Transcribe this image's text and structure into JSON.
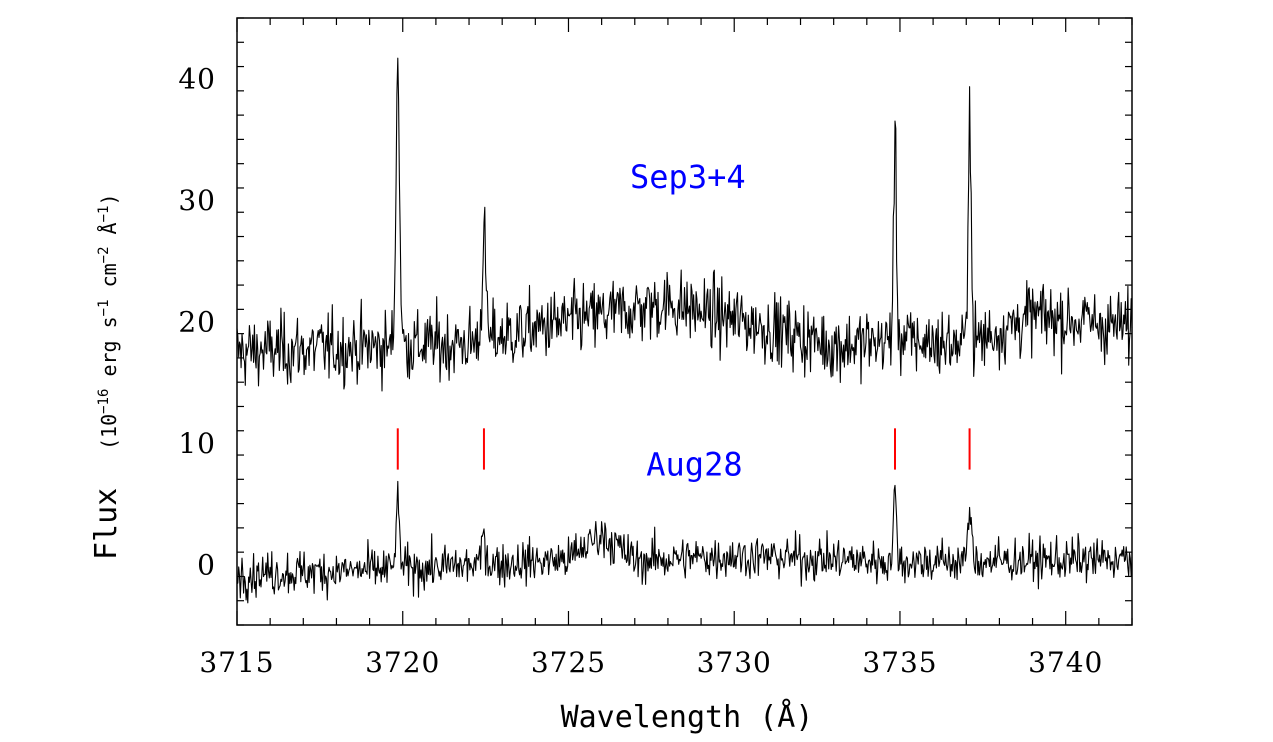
{
  "chart_data": {
    "type": "line",
    "title": "",
    "xlabel": "Wavelength (Å)",
    "ylabel_main": "Flux",
    "ylabel_unit": "(10",
    "ylabel_unit_parts": [
      "(10",
      "−16",
      " erg s",
      "−1",
      " cm",
      "−2",
      " Å",
      "−1",
      ")"
    ],
    "xlim": [
      3715,
      3742
    ],
    "ylim": [
      -5,
      45
    ],
    "x_ticks": [
      3715,
      3720,
      3725,
      3730,
      3735,
      3740
    ],
    "y_ticks": [
      0,
      10,
      20,
      30,
      40
    ],
    "grid": false,
    "line_color": "#000000",
    "marker_color": "#ff0000",
    "label_color": "#0000ff",
    "marker_lines": {
      "x": [
        3719.85,
        3722.45,
        3734.85,
        3737.1
      ],
      "y_range": [
        7.8,
        11.2
      ]
    },
    "series": [
      {
        "name": "Sep3+4",
        "label_position": [
          3728.6,
          31
        ],
        "baseline": [
          [
            3715,
            17.5
          ],
          [
            3722,
            18.2
          ],
          [
            3725,
            20.0
          ],
          [
            3728,
            21.5
          ],
          [
            3731,
            19.5
          ],
          [
            3733,
            18.0
          ],
          [
            3735,
            18.5
          ],
          [
            3737,
            18.0
          ],
          [
            3739,
            20.5
          ],
          [
            3742,
            19.5
          ]
        ],
        "noise_amplitude": 2.6,
        "lines": [
          {
            "center": 3719.85,
            "peak": 41.0,
            "width": 0.055
          },
          {
            "center": 3722.45,
            "peak": 27.5,
            "width": 0.055
          },
          {
            "center": 3734.85,
            "peak": 34.5,
            "width": 0.045
          },
          {
            "center": 3737.1,
            "peak": 38.0,
            "width": 0.045
          }
        ]
      },
      {
        "name": "Aug28",
        "label_position": [
          3728.8,
          7.3
        ],
        "baseline": [
          [
            3715,
            -0.8
          ],
          [
            3720,
            -0.4
          ],
          [
            3725,
            0.4
          ],
          [
            3726,
            2.5
          ],
          [
            3727,
            0.3
          ],
          [
            3730,
            0.7
          ],
          [
            3735,
            0.2
          ],
          [
            3742,
            0.4
          ]
        ],
        "noise_amplitude": 1.6,
        "lines": [
          {
            "center": 3719.85,
            "peak": 4.5,
            "width": 0.06
          },
          {
            "center": 3722.45,
            "peak": 2.5,
            "width": 0.06
          },
          {
            "center": 3734.85,
            "peak": 5.5,
            "width": 0.05
          },
          {
            "center": 3737.1,
            "peak": 4.5,
            "width": 0.05
          }
        ]
      }
    ]
  }
}
